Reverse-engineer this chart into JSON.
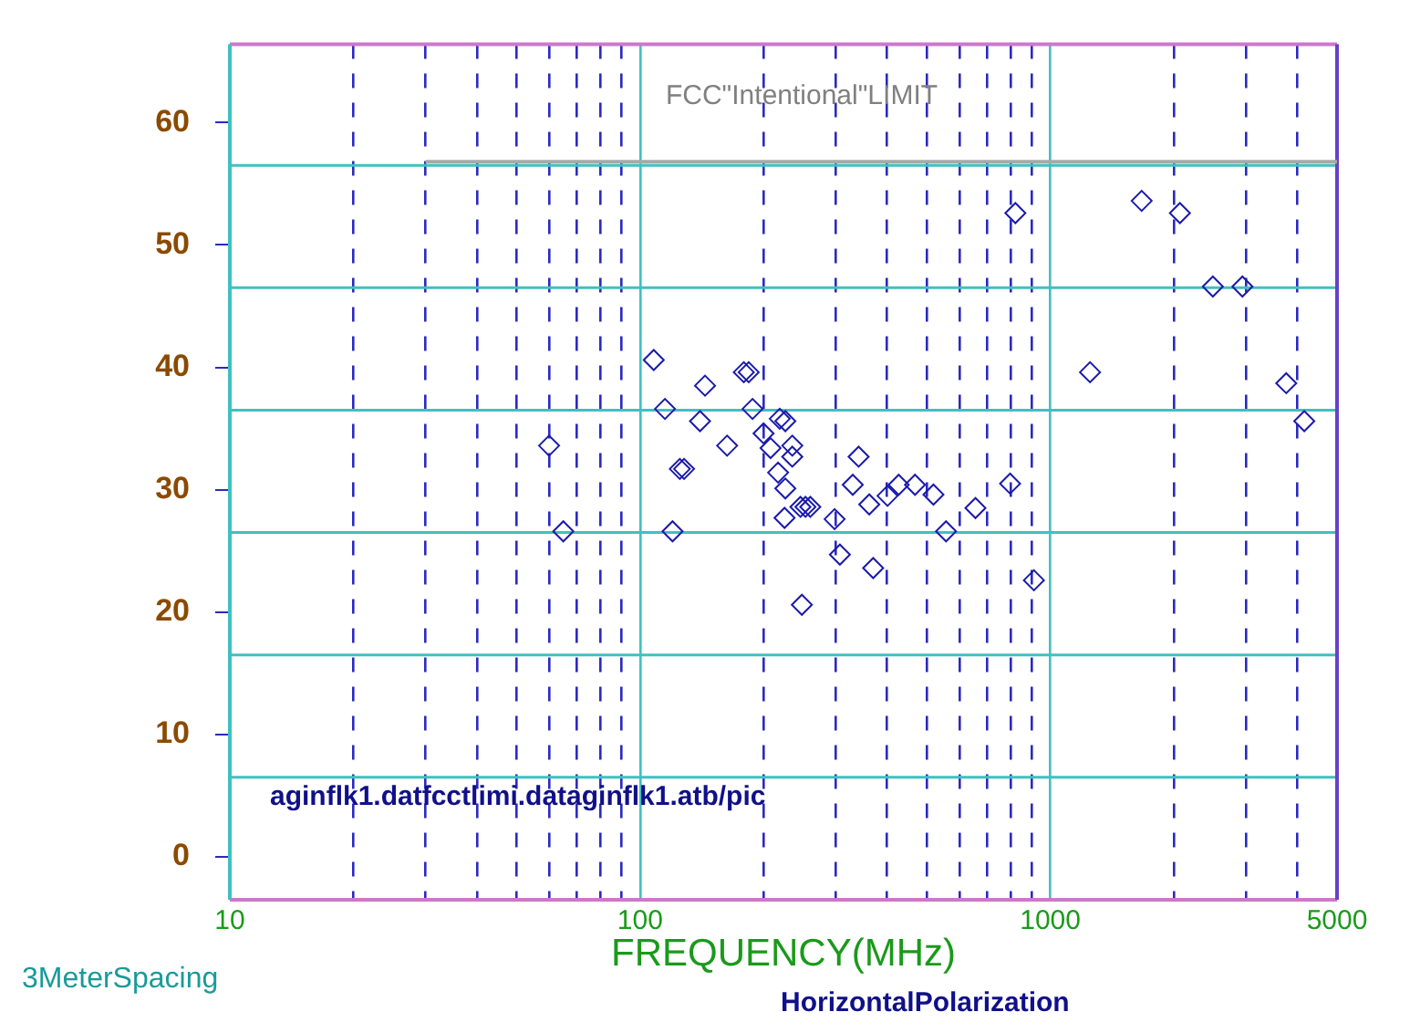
{
  "chart_data": {
    "type": "scatter",
    "xlabel": "FREQUENCY(MHz)",
    "log": "x",
    "xlim": [
      10,
      5000
    ],
    "ylim": [
      -3.5,
      66.4
    ],
    "xticks": [
      10,
      {
        "value": 20,
        "label": null
      },
      {
        "value": 30,
        "label": null
      },
      {
        "value": 40,
        "label": null
      },
      {
        "value": 50,
        "label": null
      },
      {
        "value": 60,
        "label": null
      },
      {
        "value": 70,
        "label": null
      },
      {
        "value": 80,
        "label": null
      },
      {
        "value": 90,
        "label": null
      },
      100,
      {
        "value": 200,
        "label": null
      },
      {
        "value": 300,
        "label": null
      },
      {
        "value": 400,
        "label": null
      },
      {
        "value": 500,
        "label": null
      },
      {
        "value": 600,
        "label": null
      },
      {
        "value": 700,
        "label": null
      },
      {
        "value": 800,
        "label": null
      },
      {
        "value": 900,
        "label": null
      },
      1000,
      {
        "value": 2000,
        "label": null
      },
      {
        "value": 3000,
        "label": null
      },
      {
        "value": 4000,
        "label": null
      },
      5000
    ],
    "yticks": [
      0,
      10,
      20,
      30,
      40,
      50,
      60
    ],
    "grid": "x",
    "legend": false,
    "marker": "diamond",
    "ref_lines": [
      {
        "axis": "y",
        "value": 6.5,
        "color": "#40c0c0"
      },
      {
        "axis": "y",
        "value": 16.5,
        "color": "#40c0c0"
      },
      {
        "axis": "y",
        "value": 26.5,
        "color": "#40c0c0"
      },
      {
        "axis": "y",
        "value": 36.5,
        "color": "#40c0c0"
      },
      {
        "axis": "y",
        "value": 46.5,
        "color": "#40c0c0"
      },
      {
        "axis": "y",
        "value": 56.5,
        "color": "#40c0c0"
      }
    ],
    "series": [
      {
        "color": "#1a1aaa",
        "x": [
          60,
          65,
          108,
          115,
          120,
          125,
          128,
          140,
          144,
          163,
          179,
          184,
          188,
          200,
          208,
          219,
          226,
          217,
          226,
          225,
          235,
          235,
          246,
          253,
          260,
          248,
          298,
          307,
          330,
          341,
          362,
          370,
          401,
          427,
          468,
          519,
          557,
          657,
          798,
          822,
          912,
          1250,
          1670,
          2070,
          2490,
          2940,
          3760,
          4160
        ],
        "values": [
          33.6,
          26.6,
          40.6,
          36.6,
          26.6,
          31.7,
          31.7,
          35.6,
          38.5,
          33.6,
          39.6,
          39.6,
          36.6,
          34.6,
          33.4,
          35.8,
          35.6,
          31.4,
          30.1,
          27.7,
          32.7,
          33.6,
          28.6,
          28.6,
          28.6,
          20.6,
          27.6,
          24.7,
          30.4,
          32.7,
          28.8,
          23.6,
          29.5,
          30.4,
          30.4,
          29.6,
          26.6,
          28.5,
          30.5,
          52.6,
          22.6,
          39.6,
          53.6,
          52.6,
          46.6,
          46.6,
          38.7,
          35.6
        ]
      },
      {
        "type": "line",
        "marker": "none",
        "name": "FCC\"Intentional\"LIMIT",
        "color": "#a8a8a8",
        "x": [
          30,
          5000
        ],
        "values": [
          56.8,
          56.8
        ]
      }
    ],
    "annotations": [
      "aginflk1.datfcctlimi.dataginflk1.atb/pic",
      "3MeterSpacing",
      "HorizontalPolarization"
    ]
  }
}
